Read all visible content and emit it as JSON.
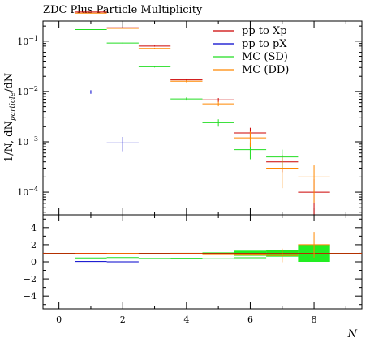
{
  "chart_data": {
    "type": "line",
    "title": "ZDC Plus Particle Multiplicity",
    "ylabel_main": "1/N, dN",
    "ylabel_sub": "particle",
    "ylabel_tail": "/dN",
    "xlabel": "N",
    "x_range": [
      -0.5,
      9.5
    ],
    "main_y_log_range": [
      -4.45,
      -0.6
    ],
    "main_y_ticks": [
      {
        "exp": -1,
        "label": "10",
        "sup": "−1"
      },
      {
        "exp": -2,
        "label": "10",
        "sup": "−2"
      },
      {
        "exp": -3,
        "label": "10",
        "sup": "−3"
      },
      {
        "exp": -4,
        "label": "10",
        "sup": "−4"
      }
    ],
    "ratio_y_range": [
      -5.5,
      5.5
    ],
    "ratio_y_ticks": [
      "4",
      "2",
      "0",
      "−2",
      "−4"
    ],
    "ratio_y_tick_values": [
      4,
      2,
      0,
      -2,
      -4
    ],
    "x_ticks": [
      "0",
      "2",
      "4",
      "6",
      "8"
    ],
    "x_tick_values": [
      0,
      2,
      4,
      6,
      8
    ],
    "legend_position": "top-right",
    "series": [
      {
        "name": "pp to Xp",
        "color": "#cc0000",
        "points": [
          {
            "x": 1,
            "y": 0.38,
            "err": 0.005
          },
          {
            "x": 2,
            "y": 0.185,
            "err": 0.003
          },
          {
            "x": 3,
            "y": 0.08,
            "err": 0.002
          },
          {
            "x": 4,
            "y": 0.017,
            "err": 0.0008
          },
          {
            "x": 5,
            "y": 0.0068,
            "err": 0.0006
          },
          {
            "x": 6,
            "y": 0.0015,
            "err": 0.0004
          },
          {
            "x": 7,
            "y": 0.0004,
            "err": 0.00015
          },
          {
            "x": 8,
            "y": 0.0001,
            "err": 8e-05
          }
        ]
      },
      {
        "name": "pp to pX",
        "color": "#0000cc",
        "points": [
          {
            "x": 1,
            "y": 0.0098,
            "err": 0.0008
          },
          {
            "x": 2,
            "y": 0.00095,
            "err": 0.0003
          }
        ]
      },
      {
        "name": "MC (SD)",
        "color": "#22dd22",
        "points": [
          {
            "x": 1,
            "y": 0.17,
            "err": 0.003
          },
          {
            "x": 2,
            "y": 0.092,
            "err": 0.002
          },
          {
            "x": 3,
            "y": 0.031,
            "err": 0.001
          },
          {
            "x": 4,
            "y": 0.0071,
            "err": 0.0005
          },
          {
            "x": 5,
            "y": 0.0024,
            "err": 0.0004
          },
          {
            "x": 6,
            "y": 0.0007,
            "err": 0.00025
          },
          {
            "x": 7,
            "y": 0.0005,
            "err": 0.0002
          }
        ]
      },
      {
        "name": "MC (DD)",
        "color": "#ff8800",
        "points": [
          {
            "x": 1,
            "y": 0.36,
            "err": 0.005
          },
          {
            "x": 2,
            "y": 0.18,
            "err": 0.003
          },
          {
            "x": 3,
            "y": 0.072,
            "err": 0.002
          },
          {
            "x": 4,
            "y": 0.016,
            "err": 0.0008
          },
          {
            "x": 5,
            "y": 0.0057,
            "err": 0.0006
          },
          {
            "x": 6,
            "y": 0.0012,
            "err": 0.0004
          },
          {
            "x": 7,
            "y": 0.0003,
            "err": 0.00018
          },
          {
            "x": 8,
            "y": 0.0002,
            "err": 0.00014
          }
        ]
      }
    ],
    "ratio_series": [
      {
        "name": "pp to pX",
        "color": "#0000cc",
        "points": [
          {
            "x": 1,
            "y": 0.03
          },
          {
            "x": 2,
            "y": 0.005
          }
        ]
      },
      {
        "name": "MC (SD)",
        "color": "#22dd22",
        "points": [
          {
            "x": 1,
            "y": 0.45
          },
          {
            "x": 2,
            "y": 0.5
          },
          {
            "x": 3,
            "y": 0.39
          },
          {
            "x": 4,
            "y": 0.42
          },
          {
            "x": 5,
            "y": 0.35
          },
          {
            "x": 6,
            "y": 0.47
          },
          {
            "x": 7,
            "y": 1.25
          }
        ]
      },
      {
        "name": "MC (DD)",
        "color": "#ff8800",
        "points": [
          {
            "x": 1,
            "y": 0.95
          },
          {
            "x": 2,
            "y": 0.97
          },
          {
            "x": 3,
            "y": 0.9
          },
          {
            "x": 4,
            "y": 0.94
          },
          {
            "x": 5,
            "y": 0.84
          },
          {
            "x": 6,
            "y": 0.8
          },
          {
            "x": 7,
            "y": 0.75,
            "err": 0.8
          },
          {
            "x": 8,
            "y": 2.0,
            "err": 1.5
          }
        ]
      }
    ],
    "ratio_band": [
      {
        "x": 1,
        "half": 0.02
      },
      {
        "x": 2,
        "half": 0.02
      },
      {
        "x": 3,
        "half": 0.03
      },
      {
        "x": 4,
        "half": 0.05
      },
      {
        "x": 5,
        "half": 0.1
      },
      {
        "x": 6,
        "half": 0.3
      },
      {
        "x": 7,
        "half": 0.4
      },
      {
        "x": 8,
        "half": 1.0
      }
    ]
  }
}
